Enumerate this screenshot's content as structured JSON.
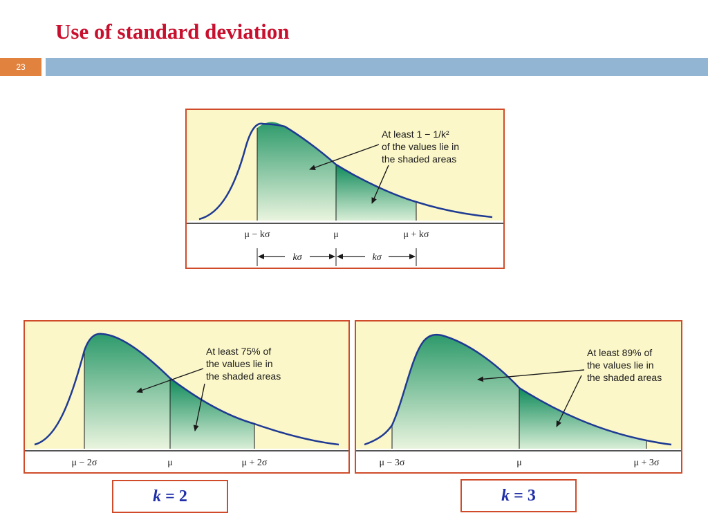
{
  "slide": {
    "title": "Use of standard deviation",
    "number": "23"
  },
  "top_panel": {
    "annotation": [
      "At least 1 − 1/k²",
      "of the values lie in",
      "the shaded areas"
    ],
    "ticks": [
      "μ − kσ",
      "μ",
      "μ + kσ"
    ],
    "spans": [
      "kσ",
      "kσ"
    ]
  },
  "left_panel": {
    "annotation": [
      "At least 75% of",
      "the values lie in",
      "the shaded areas"
    ],
    "ticks": [
      "μ − 2σ",
      "μ",
      "μ + 2σ"
    ],
    "k_label": "k",
    "k_value": "= 2"
  },
  "right_panel": {
    "annotation": [
      "At least 89% of",
      "the values lie in",
      "the shaded areas"
    ],
    "ticks": [
      "μ − 3σ",
      "μ",
      "μ + 3σ"
    ],
    "k_label": "k",
    "k_value": "= 3"
  },
  "colors": {
    "title": "#c8102e",
    "band": "#93b5d4",
    "slide_number_box": "#e2823f",
    "panel_border": "#cf4b2a",
    "panel_fill": "#fbf7c9",
    "curve": "#1f3a93",
    "shade_dark": "#0f8a5a",
    "shade_light": "#e9f4de",
    "k_text": "#1f2fa8"
  }
}
